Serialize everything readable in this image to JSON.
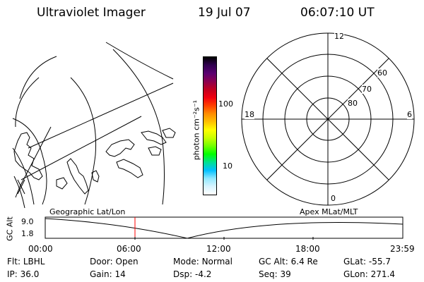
{
  "header": {
    "title": "Ultraviolet Imager",
    "date": "19 Jul 07",
    "time": "06:07:10 UT"
  },
  "colorbar": {
    "unit_label": "photon cm⁻²s⁻¹",
    "ticks": [
      "100",
      "10"
    ],
    "colors": [
      "#000000",
      "#300050",
      "#5a0070",
      "#8a0050",
      "#c00020",
      "#f00010",
      "#ff4000",
      "#ff8c00",
      "#ffc000",
      "#ffff00",
      "#c8ff00",
      "#70ff00",
      "#00ff00",
      "#00e090",
      "#00c0ff",
      "#90e8ff",
      "#d8f4ff",
      "#ffffff"
    ]
  },
  "polar": {
    "labels": {
      "top": "12",
      "bottom": "0",
      "left": "18",
      "right": "6"
    },
    "lat_labels": [
      "60",
      "70",
      "80"
    ]
  },
  "timeline": {
    "left_label": "Geographic Lat/Lon",
    "right_label": "Apex MLat/MLT",
    "axis_title": "GC Alt",
    "y_ticks": [
      "9.0",
      "1.8"
    ],
    "x_ticks": [
      "00:00",
      "06:00",
      "12:00",
      "18:00",
      "23:59"
    ],
    "marker_color": "#ff0000"
  },
  "status": {
    "row1": [
      {
        "label": "Flt:",
        "value": "LBHL"
      },
      {
        "label": "Door:",
        "value": "Open"
      },
      {
        "label": "Mode:",
        "value": "Normal"
      },
      {
        "label": "GC Alt:",
        "value": "6.4 Re"
      },
      {
        "label": "GLat:",
        "value": "-55.7"
      }
    ],
    "row2": [
      {
        "label": "IP:",
        "value": "36.0"
      },
      {
        "label": "Gain:",
        "value": "14"
      },
      {
        "label": "Dsp:",
        "value": "-4.2"
      },
      {
        "label": "Seq:",
        "value": "39"
      },
      {
        "label": "GLon:",
        "value": "271.4"
      }
    ]
  }
}
